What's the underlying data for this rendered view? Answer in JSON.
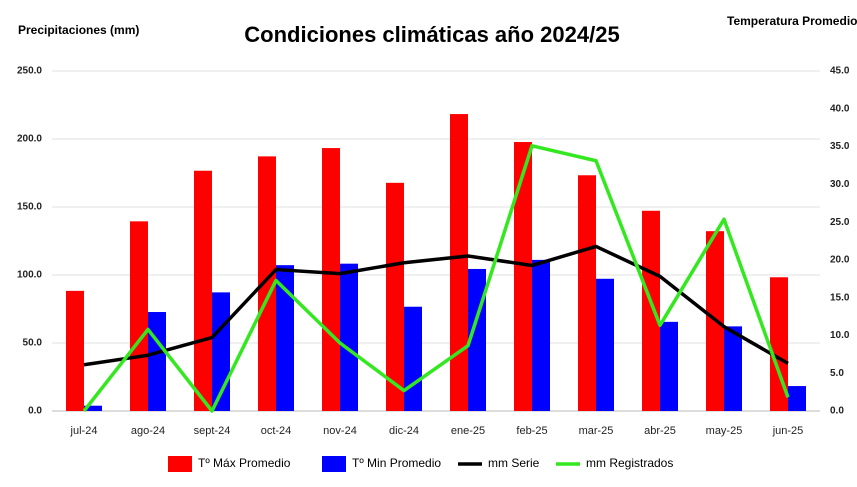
{
  "chart_data": {
    "type": "bar-line",
    "title": "Condiciones climáticas año 2024/25",
    "y_label": "Precipitaciones (mm)",
    "y2_label": "Temperatura Promedio",
    "categories": [
      "jul-24",
      "ago-24",
      "sept-24",
      "oct-24",
      "nov-24",
      "dic-24",
      "ene-25",
      "feb-25",
      "mar-25",
      "abr-25",
      "may-25",
      "jun-25"
    ],
    "series": [
      {
        "name": "Tº Máx Promedio",
        "color": "#ff0000",
        "kind": "bar",
        "axis": "y2",
        "values": [
          15.9,
          25.1,
          31.8,
          33.7,
          34.8,
          30.2,
          39.3,
          35.6,
          31.2,
          26.5,
          23.8,
          17.7
        ]
      },
      {
        "name": "Tº Min Promedio",
        "color": "#0000ff",
        "kind": "bar",
        "axis": "y2",
        "values": [
          0.7,
          13.1,
          15.7,
          19.3,
          19.5,
          13.8,
          18.8,
          20.0,
          17.5,
          11.8,
          11.2,
          3.3
        ]
      },
      {
        "name": "mm Serie",
        "color": "#000000",
        "kind": "line",
        "values": [
          34,
          41,
          54,
          104,
          101,
          109,
          114,
          107,
          121,
          99,
          62,
          35
        ]
      },
      {
        "name": "mm Registrados",
        "color": "#33e81f",
        "kind": "line",
        "values": [
          0,
          60,
          0,
          96,
          50,
          15,
          48,
          195,
          184,
          63,
          141,
          10
        ]
      }
    ],
    "ylim": [
      0,
      250
    ],
    "yticks": [
      {
        "value": 0,
        "label": "0.0"
      },
      {
        "value": 50,
        "label": "50.0"
      },
      {
        "value": 100,
        "label": "100.0"
      },
      {
        "value": 150,
        "label": "150.0"
      },
      {
        "value": 200,
        "label": "200.0"
      },
      {
        "value": 250,
        "label": "250.0"
      }
    ],
    "y2lim": [
      0,
      45
    ],
    "y2ticks": [
      {
        "value": 0,
        "label": "0.0"
      },
      {
        "value": 5,
        "label": "5.0"
      },
      {
        "value": 10,
        "label": "10.0"
      },
      {
        "value": 15,
        "label": "15.0"
      },
      {
        "value": 20,
        "label": "20.0"
      },
      {
        "value": 25,
        "label": "25.0"
      },
      {
        "value": 30,
        "label": "30.0"
      },
      {
        "value": 35,
        "label": "35.0"
      },
      {
        "value": 40,
        "label": "40.0"
      },
      {
        "value": 45,
        "label": "45.0"
      }
    ],
    "grid": true
  }
}
